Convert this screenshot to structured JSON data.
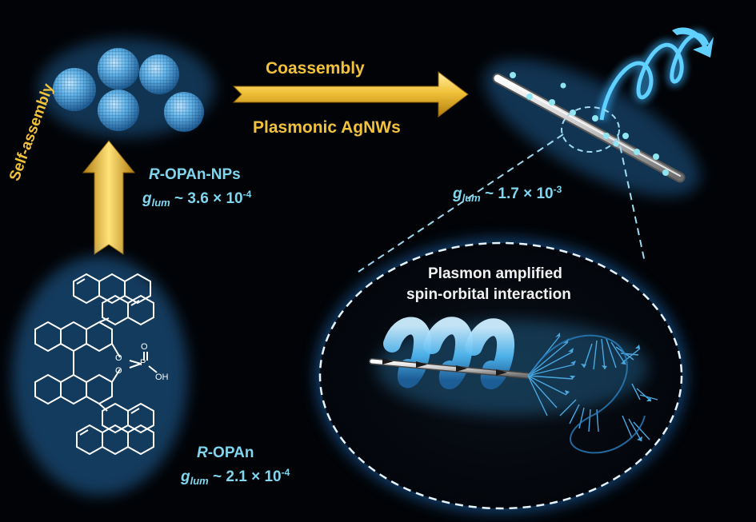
{
  "labels": {
    "coassembly": "Coassembly",
    "plasmonic": "Plasmonic AgNWs",
    "self_assembly": "Self-assembly",
    "nps_prefix": "R",
    "nps_suffix": "-OPAn-NPs",
    "nps_g_sym": "g",
    "nps_g_sub": "lum",
    "nps_g_mant": "~ 3.6 × 10",
    "nps_g_exp": "-4",
    "wire_g_sym": "g",
    "wire_g_sub": "lum",
    "wire_g_mant": "~ 1.7 × 10",
    "wire_g_exp": "-3",
    "opan_prefix": "R",
    "opan_suffix": "-OPAn",
    "opan_g_sym": "g",
    "opan_g_sub": "lum",
    "opan_g_mant": "~ 2.1 × 10",
    "opan_g_exp": "-4",
    "plasmon_line1": "Plasmon amplified",
    "plasmon_line2": "spin-orbital interaction"
  },
  "molecule": {
    "atom_o1": "O",
    "atom_o2": "O",
    "atom_p": "P",
    "atom_o3": "O",
    "atom_oh": "OH"
  },
  "colors": {
    "background": "#020306",
    "arrow_yellow": "#f2c23a",
    "glow_cyan": "#3ab4ff",
    "label_cyan": "#7fd6ee"
  }
}
